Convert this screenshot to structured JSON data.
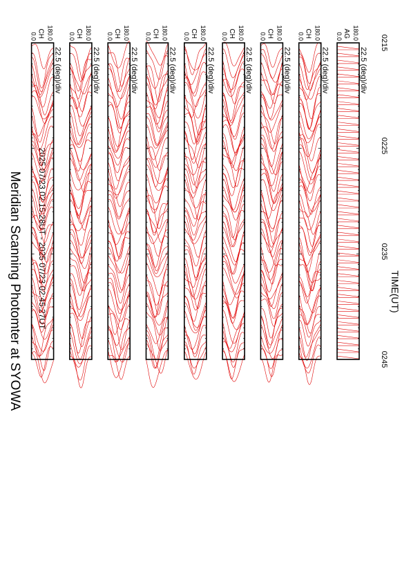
{
  "chart_data": {
    "type": "line",
    "title": "Meridian Scanning Photomter at SYOWA",
    "subtitle": "2025 07/23 02:15:28UT - 2025 07/23 02:45:27UT",
    "xlabel": "TIME(UT)",
    "x_ticks": [
      "0215",
      "0225",
      "0235",
      "0245"
    ],
    "x_range": [
      "02:15:28",
      "02:45:27"
    ],
    "y_tick_top": "180.0",
    "y_tick_bottom": "0.0",
    "scale_label": "22.5 (deg)/div",
    "line_color": "#e00000",
    "panels": [
      {
        "channel": "AG",
        "profile": "reference"
      },
      {
        "channel": "CH",
        "profile": "scan"
      },
      {
        "channel": "CH",
        "profile": "scan"
      },
      {
        "channel": "CH",
        "profile": "scan"
      },
      {
        "channel": "CH",
        "profile": "scan"
      },
      {
        "channel": "CH",
        "profile": "scan"
      },
      {
        "channel": "CH",
        "profile": "scan"
      },
      {
        "channel": "CH",
        "profile": "scan"
      },
      {
        "channel": "CH",
        "profile": "scan"
      }
    ]
  }
}
